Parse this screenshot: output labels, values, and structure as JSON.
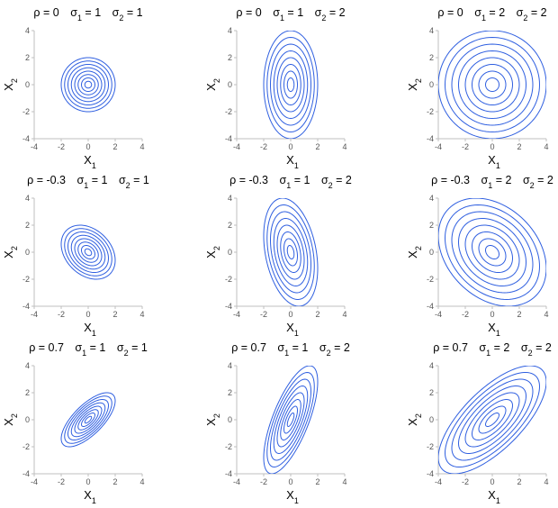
{
  "chart_data": [
    {
      "type": "contour",
      "rho_label": "ρ = 0",
      "s1_label": "σ₁ = 1",
      "s2_label": "σ₂ = 1",
      "rho": 0,
      "sigma1": 1,
      "sigma2": 1,
      "xlabel": "X₁",
      "ylabel": "X₂",
      "xlim": [
        -4,
        4
      ],
      "ylim": [
        -4,
        4
      ],
      "ticks": [
        -4,
        -2,
        0,
        2,
        4
      ],
      "grid": false
    },
    {
      "type": "contour",
      "rho_label": "ρ = 0",
      "s1_label": "σ₁ = 1",
      "s2_label": "σ₂ = 2",
      "rho": 0,
      "sigma1": 1,
      "sigma2": 2,
      "xlabel": "X₁",
      "ylabel": "X₂",
      "xlim": [
        -4,
        4
      ],
      "ylim": [
        -4,
        4
      ],
      "ticks": [
        -4,
        -2,
        0,
        2,
        4
      ],
      "grid": false
    },
    {
      "type": "contour",
      "rho_label": "ρ = 0",
      "s1_label": "σ₁ = 2",
      "s2_label": "σ₂ = 2",
      "rho": 0,
      "sigma1": 2,
      "sigma2": 2,
      "xlabel": "X₁",
      "ylabel": "X₂",
      "xlim": [
        -4,
        4
      ],
      "ylim": [
        -4,
        4
      ],
      "ticks": [
        -4,
        -2,
        0,
        2,
        4
      ],
      "grid": false
    },
    {
      "type": "contour",
      "rho_label": "ρ = -0.3",
      "s1_label": "σ₁ = 1",
      "s2_label": "σ₂ = 1",
      "rho": -0.3,
      "sigma1": 1,
      "sigma2": 1,
      "xlabel": "X₁",
      "ylabel": "X₂",
      "xlim": [
        -4,
        4
      ],
      "ylim": [
        -4,
        4
      ],
      "ticks": [
        -4,
        -2,
        0,
        2,
        4
      ],
      "grid": false
    },
    {
      "type": "contour",
      "rho_label": "ρ = -0.3",
      "s1_label": "σ₁ = 1",
      "s2_label": "σ₂ = 2",
      "rho": -0.3,
      "sigma1": 1,
      "sigma2": 2,
      "xlabel": "X₁",
      "ylabel": "X₂",
      "xlim": [
        -4,
        4
      ],
      "ylim": [
        -4,
        4
      ],
      "ticks": [
        -4,
        -2,
        0,
        2,
        4
      ],
      "grid": false
    },
    {
      "type": "contour",
      "rho_label": "ρ = -0.3",
      "s1_label": "σ₁ = 2",
      "s2_label": "σ₂ = 2",
      "rho": -0.3,
      "sigma1": 2,
      "sigma2": 2,
      "xlabel": "X₁",
      "ylabel": "X₂",
      "xlim": [
        -4,
        4
      ],
      "ylim": [
        -4,
        4
      ],
      "ticks": [
        -4,
        -2,
        0,
        2,
        4
      ],
      "grid": false
    },
    {
      "type": "contour",
      "rho_label": "ρ = 0.7",
      "s1_label": "σ₁ = 1",
      "s2_label": "σ₂ = 1",
      "rho": 0.7,
      "sigma1": 1,
      "sigma2": 1,
      "xlabel": "X₁",
      "ylabel": "X₂",
      "xlim": [
        -4,
        4
      ],
      "ylim": [
        -4,
        4
      ],
      "ticks": [
        -4,
        -2,
        0,
        2,
        4
      ],
      "grid": false
    },
    {
      "type": "contour",
      "rho_label": "ρ = 0.7",
      "s1_label": "σ₁ = 1",
      "s2_label": "σ₂ = 2",
      "rho": 0.7,
      "sigma1": 1,
      "sigma2": 2,
      "xlabel": "X₁",
      "ylabel": "X₂",
      "xlim": [
        -4,
        4
      ],
      "ylim": [
        -4,
        4
      ],
      "ticks": [
        -4,
        -2,
        0,
        2,
        4
      ],
      "grid": false
    },
    {
      "type": "contour",
      "rho_label": "ρ = 0.7",
      "s1_label": "σ₁ = 2",
      "s2_label": "σ₂ = 2",
      "rho": 0.7,
      "sigma1": 2,
      "sigma2": 2,
      "xlabel": "X₁",
      "ylabel": "X₂",
      "xlim": [
        -4,
        4
      ],
      "ylim": [
        -4,
        4
      ],
      "ticks": [
        -4,
        -2,
        0,
        2,
        4
      ],
      "grid": false
    }
  ],
  "style": {
    "contour_color": "#2f5fe0",
    "axis_color": "#bfbfbf"
  },
  "contour_levels": [
    0.25,
    0.5,
    0.75,
    1.0,
    1.25,
    1.5,
    1.75,
    2.0
  ]
}
